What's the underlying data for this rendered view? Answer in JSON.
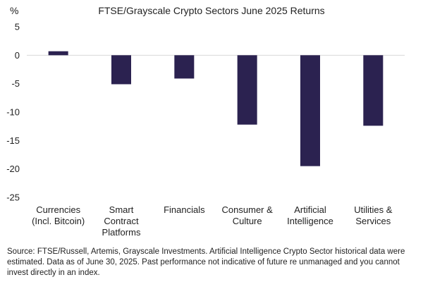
{
  "chart_data": {
    "type": "bar",
    "title": "FTSE/Grayscale Crypto Sectors June 2025 Returns",
    "ylabel": "%",
    "xlabel": "",
    "ylim": [
      -25,
      5
    ],
    "yticks": [
      5,
      0,
      -5,
      -10,
      -15,
      -20,
      -25
    ],
    "grid": false,
    "bar_color": "#2b2250",
    "categories": [
      [
        "Currencies",
        "(Incl. Bitcoin)"
      ],
      [
        "Smart",
        "Contract",
        "Platforms"
      ],
      [
        "Financials"
      ],
      [
        "Consumer &",
        "Culture"
      ],
      [
        "Artificial",
        "Intelligence"
      ],
      [
        "Utilities &",
        "Services"
      ]
    ],
    "values": [
      0.7,
      -5.1,
      -4.1,
      -12.2,
      -19.5,
      -12.4
    ]
  },
  "source_note": "Source: FTSE/Russell, Artemis, Grayscale Investments. Artificial Intelligence Crypto Sector historical data were estimated. Data as of June 30, 2025. Past performance not indicative of future re unmanaged and you cannot invest directly in an index."
}
